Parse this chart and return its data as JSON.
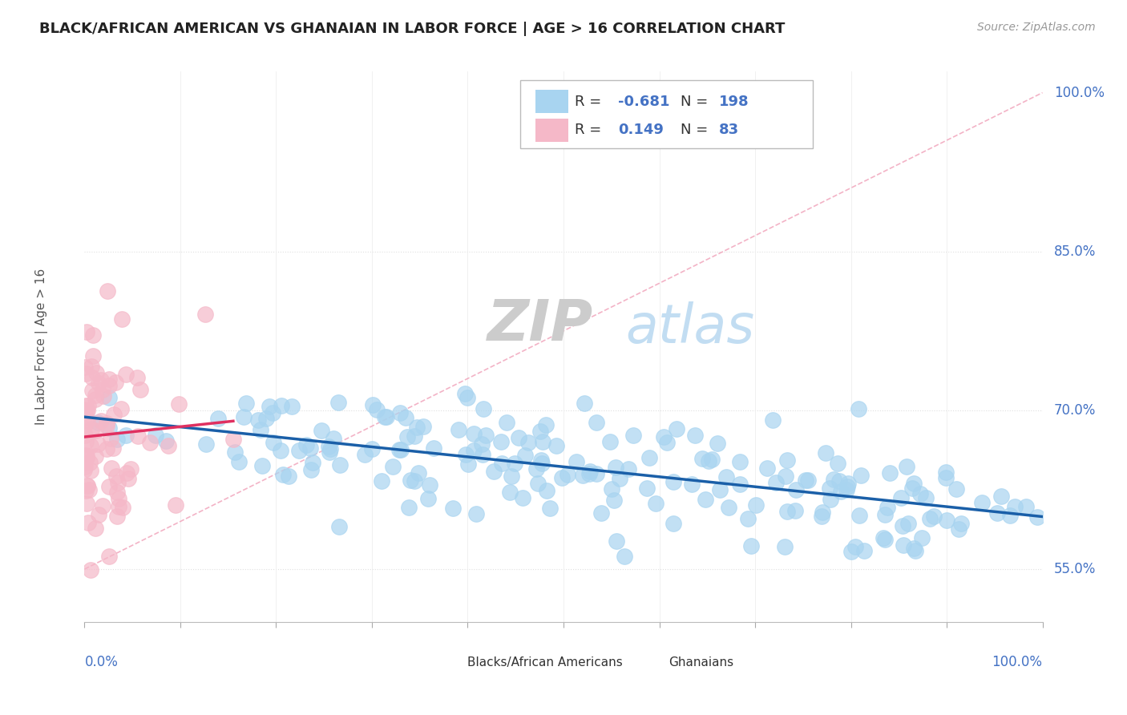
{
  "title": "BLACK/AFRICAN AMERICAN VS GHANAIAN IN LABOR FORCE | AGE > 16 CORRELATION CHART",
  "source_text": "Source: ZipAtlas.com",
  "ylabel": "In Labor Force | Age > 16",
  "ylabel_right_labels": [
    "55.0%",
    "70.0%",
    "85.0%",
    "100.0%"
  ],
  "ylabel_right_values": [
    0.55,
    0.7,
    0.85,
    1.0
  ],
  "legend_blue_R": "-0.681",
  "legend_blue_N": "198",
  "legend_pink_R": "0.149",
  "legend_pink_N": "83",
  "blue_color": "#a8d4f0",
  "pink_color": "#f5b8c8",
  "blue_line_color": "#1a5fa8",
  "pink_line_color": "#e03060",
  "ref_line_color": "#f0a0b8",
  "grid_color": "#e0e0e0",
  "ymin": 0.5,
  "ymax": 1.02,
  "xmin": 0.0,
  "xmax": 1.0
}
